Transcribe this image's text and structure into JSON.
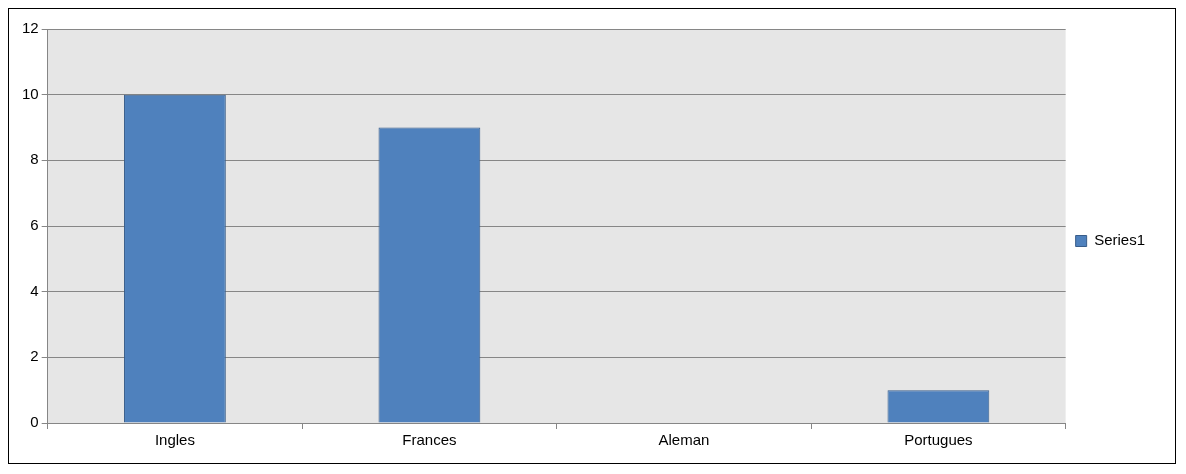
{
  "chart_data": {
    "type": "bar",
    "categories": [
      "Ingles",
      "Frances",
      "Aleman",
      "Portugues"
    ],
    "series": [
      {
        "name": "Series1",
        "color": "#4f81bd",
        "values": [
          10,
          9,
          0,
          1
        ]
      }
    ],
    "ylim": [
      0,
      12
    ],
    "yticks": [
      0,
      2,
      4,
      6,
      8,
      10,
      12
    ],
    "grid": "y",
    "legend": "right"
  }
}
